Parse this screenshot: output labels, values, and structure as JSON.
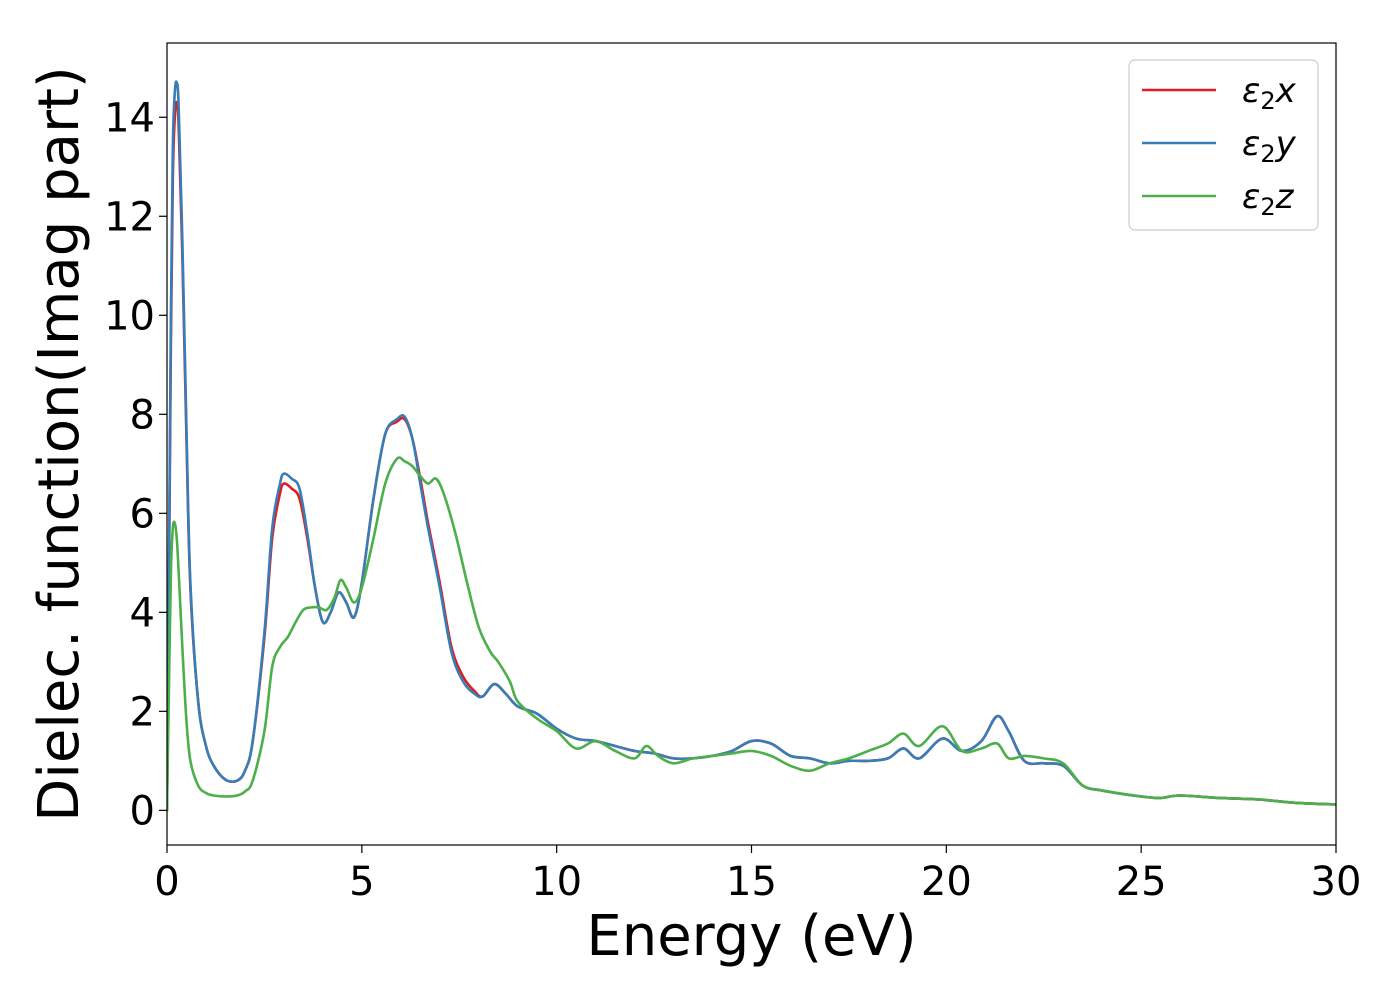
{
  "chart_data": {
    "type": "line",
    "xlabel": "Energy (eV)",
    "ylabel": "Dielec. function(Imag part)",
    "xlim": [
      0,
      30
    ],
    "ylim": [
      -0.7,
      15.5
    ],
    "xticks": [
      0,
      5,
      10,
      15,
      20,
      25,
      30
    ],
    "yticks": [
      0,
      2,
      4,
      6,
      8,
      10,
      12,
      14
    ],
    "grid": false,
    "legend_position": "top-right",
    "series": [
      {
        "name": "ε2x",
        "legend_base": "ε",
        "legend_sub": "2",
        "legend_suffix": "x",
        "color": "#e41a1c",
        "x": [
          0,
          0.05,
          0.1,
          0.15,
          0.2,
          0.25,
          0.3,
          0.4,
          0.5,
          0.6,
          0.8,
          1.0,
          1.2,
          1.5,
          1.8,
          2.0,
          2.2,
          2.5,
          2.7,
          2.9,
          3.0,
          3.2,
          3.4,
          3.6,
          3.8,
          4.0,
          4.2,
          4.4,
          4.6,
          4.8,
          5.0,
          5.3,
          5.6,
          5.9,
          6.1,
          6.3,
          6.5,
          6.7,
          7.0,
          7.3,
          7.6,
          7.9,
          8.1,
          8.4,
          8.7,
          9.0,
          9.5,
          10.0,
          10.5,
          11.0,
          11.5,
          12.0,
          12.5,
          13.0,
          13.5,
          14.0,
          14.5,
          15.0,
          15.5,
          16.0,
          16.5,
          17.0,
          17.5,
          18.0,
          18.5,
          18.9,
          19.3,
          19.9,
          20.4,
          20.9,
          21.3,
          21.6,
          22.0,
          22.5,
          23.0,
          23.5,
          24.0,
          25.0,
          25.5,
          26.0,
          27.0,
          28.0,
          29.0,
          30.0
        ],
        "y": [
          0,
          4.5,
          9.5,
          12.8,
          14.0,
          14.3,
          13.8,
          11.0,
          7.5,
          4.5,
          2.2,
          1.3,
          0.9,
          0.62,
          0.6,
          0.8,
          1.4,
          3.5,
          5.5,
          6.4,
          6.6,
          6.5,
          6.3,
          5.5,
          4.5,
          3.8,
          4.0,
          4.4,
          4.2,
          3.9,
          4.6,
          6.3,
          7.6,
          7.85,
          7.9,
          7.5,
          6.7,
          5.8,
          4.6,
          3.3,
          2.7,
          2.4,
          2.3,
          2.55,
          2.35,
          2.1,
          1.95,
          1.65,
          1.45,
          1.4,
          1.3,
          1.2,
          1.15,
          1.05,
          1.05,
          1.1,
          1.2,
          1.4,
          1.35,
          1.1,
          1.05,
          0.95,
          1.0,
          1.0,
          1.05,
          1.25,
          1.05,
          1.45,
          1.2,
          1.4,
          1.9,
          1.6,
          1.0,
          0.95,
          0.9,
          0.5,
          0.4,
          0.28,
          0.25,
          0.3,
          0.25,
          0.22,
          0.15,
          0.12
        ]
      },
      {
        "name": "ε2y",
        "legend_base": "ε",
        "legend_sub": "2",
        "legend_suffix": "y",
        "color": "#377eb8",
        "x": [
          0,
          0.05,
          0.1,
          0.15,
          0.2,
          0.25,
          0.3,
          0.4,
          0.5,
          0.6,
          0.8,
          1.0,
          1.2,
          1.5,
          1.8,
          2.0,
          2.2,
          2.5,
          2.7,
          2.9,
          3.0,
          3.2,
          3.4,
          3.6,
          3.8,
          4.0,
          4.2,
          4.4,
          4.6,
          4.8,
          5.0,
          5.3,
          5.6,
          5.9,
          6.1,
          6.3,
          6.5,
          6.7,
          7.0,
          7.3,
          7.6,
          7.9,
          8.1,
          8.4,
          8.7,
          9.0,
          9.5,
          10.0,
          10.5,
          11.0,
          11.5,
          12.0,
          12.5,
          13.0,
          13.5,
          14.0,
          14.5,
          15.0,
          15.5,
          16.0,
          16.5,
          17.0,
          17.5,
          18.0,
          18.5,
          18.9,
          19.3,
          19.9,
          20.4,
          20.9,
          21.3,
          21.6,
          22.0,
          22.5,
          23.0,
          23.5,
          24.0,
          25.0,
          25.5,
          26.0,
          27.0,
          28.0,
          29.0,
          30.0
        ],
        "y": [
          0,
          4.8,
          10.0,
          13.4,
          14.5,
          14.7,
          14.2,
          11.3,
          7.7,
          4.6,
          2.2,
          1.3,
          0.9,
          0.62,
          0.6,
          0.8,
          1.4,
          3.6,
          5.7,
          6.6,
          6.8,
          6.7,
          6.5,
          5.6,
          4.5,
          3.8,
          4.0,
          4.4,
          4.2,
          3.9,
          4.6,
          6.3,
          7.6,
          7.9,
          7.95,
          7.5,
          6.6,
          5.7,
          4.5,
          3.2,
          2.6,
          2.35,
          2.3,
          2.55,
          2.35,
          2.1,
          1.95,
          1.65,
          1.45,
          1.4,
          1.3,
          1.2,
          1.15,
          1.05,
          1.05,
          1.1,
          1.2,
          1.4,
          1.35,
          1.1,
          1.05,
          0.95,
          1.0,
          1.0,
          1.05,
          1.25,
          1.05,
          1.45,
          1.2,
          1.4,
          1.9,
          1.6,
          1.0,
          0.95,
          0.9,
          0.5,
          0.4,
          0.28,
          0.25,
          0.3,
          0.25,
          0.22,
          0.15,
          0.12
        ]
      },
      {
        "name": "ε2z",
        "legend_base": "ε",
        "legend_sub": "2",
        "legend_suffix": "z",
        "color": "#4daf4a",
        "x": [
          0,
          0.05,
          0.1,
          0.15,
          0.2,
          0.25,
          0.3,
          0.4,
          0.5,
          0.6,
          0.8,
          1.0,
          1.2,
          1.5,
          1.8,
          2.0,
          2.2,
          2.5,
          2.7,
          2.9,
          3.1,
          3.3,
          3.5,
          3.7,
          3.9,
          4.1,
          4.3,
          4.45,
          4.6,
          4.8,
          5.0,
          5.3,
          5.6,
          5.9,
          6.1,
          6.3,
          6.5,
          6.7,
          6.9,
          7.1,
          7.4,
          7.7,
          8.0,
          8.3,
          8.5,
          8.8,
          9.0,
          9.5,
          10.0,
          10.5,
          11.0,
          11.5,
          12.0,
          12.3,
          12.6,
          13.0,
          13.5,
          14.0,
          14.5,
          15.0,
          15.5,
          16.0,
          16.5,
          17.0,
          17.5,
          18.0,
          18.5,
          18.9,
          19.3,
          19.9,
          20.4,
          20.9,
          21.3,
          21.6,
          22.0,
          22.5,
          23.0,
          23.5,
          24.0,
          25.0,
          25.5,
          26.0,
          27.0,
          28.0,
          29.0,
          30.0
        ],
        "y": [
          0,
          2.5,
          4.8,
          5.7,
          5.8,
          5.5,
          4.8,
          3.2,
          1.8,
          1.0,
          0.5,
          0.35,
          0.3,
          0.28,
          0.3,
          0.38,
          0.6,
          1.6,
          2.9,
          3.3,
          3.5,
          3.8,
          4.05,
          4.1,
          4.1,
          4.05,
          4.3,
          4.65,
          4.5,
          4.2,
          4.5,
          5.5,
          6.6,
          7.1,
          7.05,
          6.95,
          6.75,
          6.6,
          6.7,
          6.4,
          5.6,
          4.6,
          3.7,
          3.2,
          3.0,
          2.6,
          2.2,
          1.85,
          1.6,
          1.25,
          1.4,
          1.2,
          1.05,
          1.3,
          1.1,
          0.95,
          1.05,
          1.1,
          1.15,
          1.2,
          1.1,
          0.9,
          0.8,
          0.95,
          1.05,
          1.2,
          1.35,
          1.55,
          1.3,
          1.7,
          1.2,
          1.25,
          1.35,
          1.05,
          1.1,
          1.05,
          0.95,
          0.5,
          0.4,
          0.28,
          0.25,
          0.3,
          0.25,
          0.22,
          0.15,
          0.12
        ]
      }
    ]
  }
}
